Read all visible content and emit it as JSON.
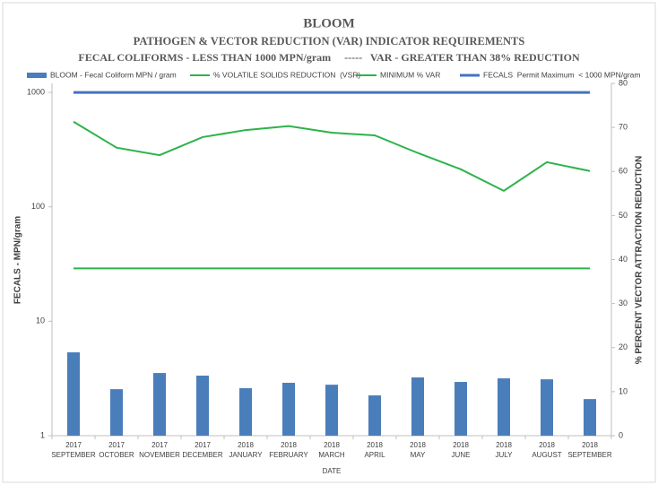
{
  "chart_data": {
    "type": "combo",
    "title": "BLOOM",
    "subtitle": "PATHOGEN & VECTOR REDUCTION (VAR) INDICATOR REQUIREMENTS",
    "subtitle2": "FECAL COLIFORMS - LESS THAN 1000 MPN/gram     -----   VAR - GREATER THAN 38% REDUCTION",
    "xlabel": "DATE",
    "ylabel": "FECALS - MPN/gram",
    "y2label": "% PERCENT VECTOR ATTRACTION REDUCTION",
    "categories": [
      [
        "2017",
        "SEPTEMBER"
      ],
      [
        "2017",
        "OCTOBER"
      ],
      [
        "2017",
        "NOVEMBER"
      ],
      [
        "2017",
        "DECEMBER"
      ],
      [
        "2018",
        "JANUARY"
      ],
      [
        "2018",
        "FEBRUARY"
      ],
      [
        "2018",
        "MARCH"
      ],
      [
        "2018",
        "APRIL"
      ],
      [
        "2018",
        "MAY"
      ],
      [
        "2018",
        "JUNE"
      ],
      [
        "2018",
        "JULY"
      ],
      [
        "2018",
        "AUGUST"
      ],
      [
        "2018",
        "SEPTEMBER"
      ]
    ],
    "series": [
      {
        "name": "BLOOM - Fecal Coliform MPN / gram",
        "type": "bar",
        "color": "#4a7ebb",
        "values": [
          5.35,
          2.55,
          3.53,
          3.35,
          2.6,
          2.9,
          2.79,
          2.25,
          3.23,
          2.95,
          3.17,
          3.11,
          2.09
        ]
      },
      {
        "name": "% VOLATILE SOLIDS REDUCTION  (VSR)",
        "type": "line",
        "axis": "y2",
        "color": "#2db34a",
        "values": [
          71.3,
          65.4,
          63.7,
          67.8,
          69.4,
          70.3,
          68.8,
          68.2,
          64.2,
          60.5,
          55.6,
          62.1,
          60.1
        ]
      },
      {
        "name": "MINIMUM % VAR",
        "type": "line",
        "axis": "y2",
        "color": "#2db34a",
        "values": [
          38,
          38,
          38,
          38,
          38,
          38,
          38,
          38,
          38,
          38,
          38,
          38,
          38
        ]
      },
      {
        "name": "FECALS  Permit Maximum  < 1000 MPN/gram",
        "type": "line",
        "color": "#4472c4",
        "width": 3,
        "values": [
          1000,
          1000,
          1000,
          1000,
          1000,
          1000,
          1000,
          1000,
          1000,
          1000,
          1000,
          1000,
          1000
        ]
      }
    ],
    "ylim": [
      1,
      1200
    ],
    "yticks": [
      1,
      10,
      100,
      1000
    ],
    "ylog": true,
    "y2lim": [
      0,
      80
    ],
    "y2ticks": [
      0,
      10,
      20,
      30,
      40,
      50,
      60,
      70,
      80
    ],
    "grid": false,
    "legend": "top"
  }
}
